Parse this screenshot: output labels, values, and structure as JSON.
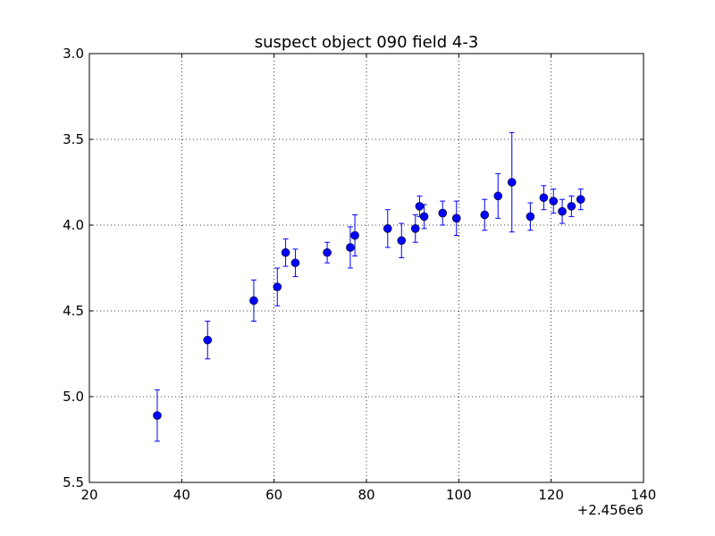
{
  "chart_data": {
    "type": "scatter",
    "title": "suspect object 090 field 4-3",
    "xlabel": "",
    "ylabel": "",
    "xlim": [
      20,
      140
    ],
    "ylim": [
      5.5,
      3.0
    ],
    "y_inverted": true,
    "grid": true,
    "x_offset_label": "+2.456e6",
    "x_ticks": [
      "20",
      "40",
      "60",
      "80",
      "100",
      "120",
      "140"
    ],
    "y_ticks": [
      "3.0",
      "3.5",
      "4.0",
      "4.5",
      "5.0",
      "5.5"
    ],
    "colors": {
      "marker": "#0000ff",
      "errorbar": "#0000ff",
      "grid": "#000000"
    },
    "series": [
      {
        "x": [
          34.7,
          45.6,
          55.6,
          60.7,
          62.5,
          64.6,
          71.5,
          76.5,
          77.5,
          84.6,
          87.6,
          90.6,
          91.5,
          92.5,
          96.5,
          99.5,
          105.6,
          108.5,
          111.5,
          115.5,
          118.4,
          120.5,
          122.4,
          124.4,
          126.4
        ],
        "y": [
          5.11,
          4.67,
          4.44,
          4.36,
          4.16,
          4.22,
          4.16,
          4.13,
          4.06,
          4.02,
          4.09,
          4.02,
          3.89,
          3.95,
          3.93,
          3.96,
          3.94,
          3.83,
          3.75,
          3.95,
          3.84,
          3.86,
          3.92,
          3.89,
          3.85
        ],
        "yerr": [
          0.15,
          0.11,
          0.12,
          0.11,
          0.08,
          0.08,
          0.06,
          0.12,
          0.12,
          0.11,
          0.1,
          0.08,
          0.06,
          0.07,
          0.07,
          0.1,
          0.09,
          0.13,
          0.29,
          0.08,
          0.07,
          0.07,
          0.07,
          0.06,
          0.06
        ]
      }
    ]
  }
}
